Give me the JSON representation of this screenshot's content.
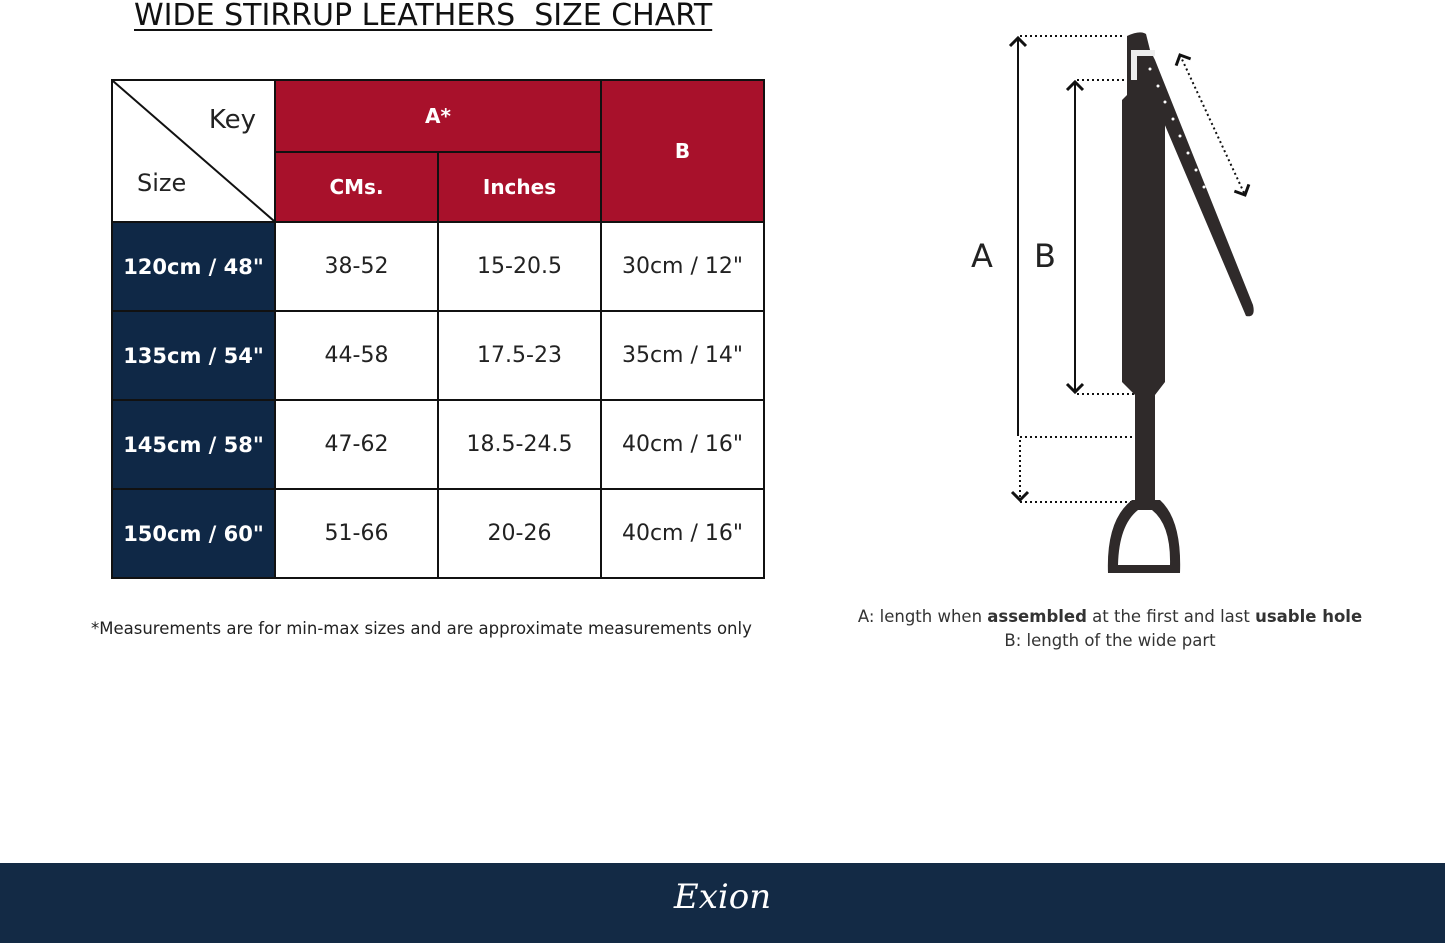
{
  "title": "WIDE STIRRUP LEATHERS  SIZE CHART",
  "table": {
    "corner_key": "Key",
    "corner_size": "Size",
    "header_a": "A*",
    "header_b": "B",
    "header_cms": "CMs.",
    "header_inches": "Inches",
    "rows": [
      {
        "size": "120cm / 48\"",
        "cms": "38-52",
        "inches": "15-20.5",
        "b": "30cm / 12\""
      },
      {
        "size": "135cm / 54\"",
        "cms": "44-58",
        "inches": "17.5-23",
        "b": "35cm / 14\""
      },
      {
        "size": "145cm / 58\"",
        "cms": "47-62",
        "inches": "18.5-24.5",
        "b": "40cm / 16\""
      },
      {
        "size": "150cm / 60\"",
        "cms": "51-66",
        "inches": "20-26",
        "b": "40cm / 16\""
      }
    ]
  },
  "note": "*Measurements are for min-max sizes and are approximate measurements only",
  "diagram": {
    "label_a": "A",
    "label_b": "B",
    "caption_a_pre": "A: length when ",
    "caption_a_bold1": "assembled",
    "caption_a_mid": " at the first and last ",
    "caption_a_bold2": "usable hole",
    "caption_b": "B: length of the wide part"
  },
  "footer": {
    "logo": "Exion"
  },
  "colors": {
    "header_red": "#a8112b",
    "size_navy": "#0f2846",
    "footer_navy": "#132a45"
  }
}
